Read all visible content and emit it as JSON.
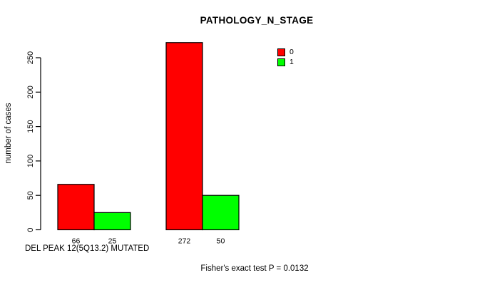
{
  "page": {
    "background": "#ffffff",
    "axis_color": "#000000",
    "text_color": "#000000"
  },
  "chart_data": {
    "type": "bar",
    "title": "PATHOLOGY_N_STAGE",
    "ylabel": "number of cases",
    "xlabel": "DEL PEAK 12(5Q13.2) MUTATED",
    "annotation": "Fisher's exact test P = 0.0132",
    "ylim": [
      0,
      250
    ],
    "yticks": [
      0,
      50,
      100,
      150,
      200,
      250
    ],
    "grid": false,
    "legend_position": "top-right",
    "legend": [
      {
        "label": "0",
        "color": "#FF0000"
      },
      {
        "label": "1",
        "color": "#00FF00"
      }
    ],
    "groups": [
      {
        "bars": [
          {
            "series": "0",
            "value": 66,
            "label": "66",
            "color": "#FF0000"
          },
          {
            "series": "1",
            "value": 25,
            "label": "25",
            "color": "#00FF00"
          }
        ]
      },
      {
        "bars": [
          {
            "series": "0",
            "value": 272,
            "label": "272",
            "color": "#FF0000"
          },
          {
            "series": "1",
            "value": 50,
            "label": "50",
            "color": "#00FF00"
          }
        ]
      }
    ]
  }
}
